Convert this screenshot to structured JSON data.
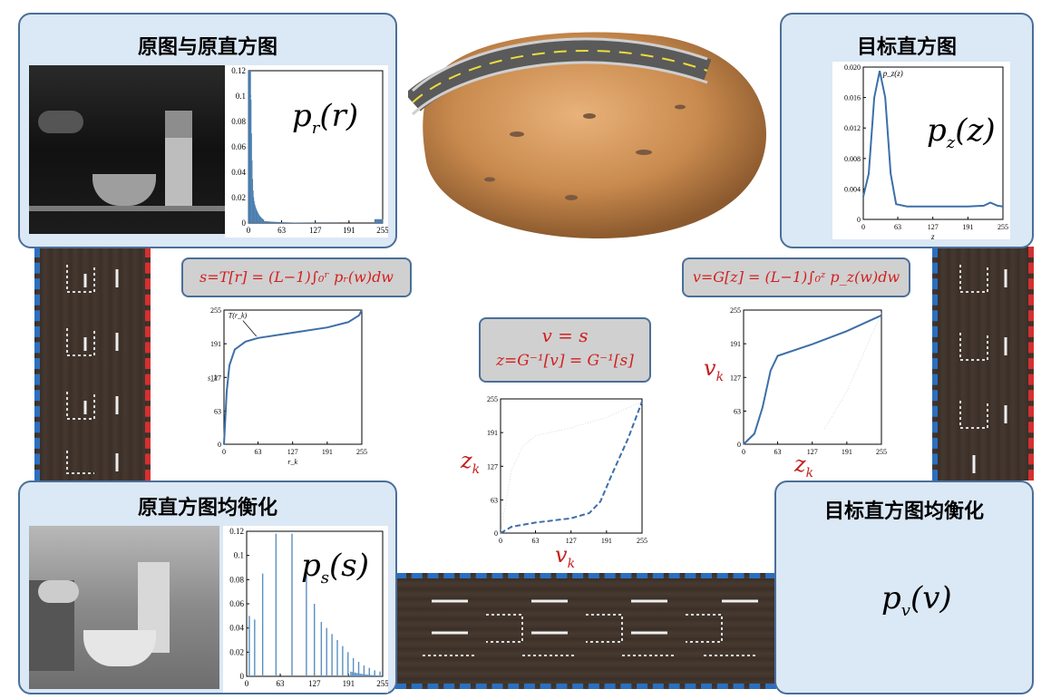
{
  "panels": {
    "original": {
      "title": "原图与原直方图",
      "label": "p_r(r)",
      "label_base": "p",
      "label_sub": "r",
      "label_arg": "(r)"
    },
    "target": {
      "title": "目标直方图",
      "label_base": "p",
      "label_sub": "z",
      "label_arg": "(z)",
      "curve_label": "p_z(z)"
    },
    "orig_eq": {
      "title": "原直方图均衡化",
      "label_base": "p",
      "label_sub": "s",
      "label_arg": "(s)"
    },
    "target_eq": {
      "title": "目标直方图均衡化",
      "label_base": "p",
      "label_sub": "v",
      "label_arg": "(v)"
    }
  },
  "formulas": {
    "left": "s=T[r] = (L−1)∫₀ʳ pᵣ(w)dw",
    "right": "v=G[z] = (L−1)∫₀ᶻ p_z(w)dw",
    "center_line1": "v = s",
    "center_line2": "z=G⁻¹[v] = G⁻¹[s]"
  },
  "axis_labels": {
    "vk_right": "v",
    "vk_right_sub": "k",
    "zk_center": "z",
    "zk_center_sub": "k",
    "vk_center": "v",
    "vk_center_sub": "k",
    "zk_right": "z",
    "zk_right_sub": "k",
    "left_curve_ann": "T(r_k)",
    "left_y": "s_k",
    "left_x": "r_k",
    "target_x": "z"
  },
  "chart_data": [
    {
      "type": "bar",
      "name_ref": "original_histogram",
      "xticks": [
        "0",
        "63",
        "127",
        "191",
        "255"
      ],
      "yticks": [
        "0",
        "0.02",
        "0.04",
        "0.06",
        "0.08",
        "0.1",
        "0.12"
      ],
      "ylim": [
        0,
        0.12
      ],
      "xlim": [
        0,
        255
      ],
      "peaks": [
        {
          "x": 2,
          "y": 0.118
        },
        {
          "x": 4,
          "y": 0.05
        },
        {
          "x": 7,
          "y": 0.03
        },
        {
          "x": 12,
          "y": 0.012
        },
        {
          "x": 20,
          "y": 0.005
        },
        {
          "x": 250,
          "y": 0.003
        }
      ]
    },
    {
      "type": "line",
      "name_ref": "target_histogram",
      "xticks": [
        "0",
        "63",
        "127",
        "191",
        "255"
      ],
      "yticks": [
        "0",
        "0.004",
        "0.008",
        "0.012",
        "0.016",
        "0.020"
      ],
      "ylim": [
        0,
        0.02
      ],
      "xlim": [
        0,
        255
      ],
      "points": [
        [
          0,
          0.003
        ],
        [
          10,
          0.006
        ],
        [
          20,
          0.016
        ],
        [
          30,
          0.0195
        ],
        [
          40,
          0.016
        ],
        [
          50,
          0.006
        ],
        [
          60,
          0.002
        ],
        [
          80,
          0.0017
        ],
        [
          127,
          0.0017
        ],
        [
          191,
          0.0017
        ],
        [
          220,
          0.0018
        ],
        [
          232,
          0.0022
        ],
        [
          245,
          0.0018
        ],
        [
          255,
          0.0017
        ]
      ]
    },
    {
      "type": "line",
      "name_ref": "transform_T",
      "xticks": [
        "0",
        "63",
        "127",
        "191",
        "255"
      ],
      "yticks": [
        "0",
        "63",
        "127",
        "191",
        "255"
      ],
      "xlim": [
        0,
        255
      ],
      "ylim": [
        0,
        255
      ],
      "points": [
        [
          0,
          0
        ],
        [
          5,
          100
        ],
        [
          10,
          150
        ],
        [
          20,
          180
        ],
        [
          40,
          195
        ],
        [
          63,
          202
        ],
        [
          127,
          212
        ],
        [
          191,
          222
        ],
        [
          230,
          232
        ],
        [
          250,
          245
        ],
        [
          255,
          255
        ]
      ]
    },
    {
      "type": "line",
      "name_ref": "inverse_G",
      "xticks": [
        "0",
        "63",
        "127",
        "191",
        "255"
      ],
      "yticks": [
        "0",
        "63",
        "127",
        "191",
        "255"
      ],
      "xlim": [
        0,
        255
      ],
      "ylim": [
        0,
        255
      ],
      "points": [
        [
          0,
          0
        ],
        [
          20,
          12
        ],
        [
          63,
          20
        ],
        [
          127,
          28
        ],
        [
          160,
          38
        ],
        [
          180,
          60
        ],
        [
          200,
          110
        ],
        [
          230,
          180
        ],
        [
          255,
          250
        ]
      ]
    },
    {
      "type": "line",
      "name_ref": "transform_G",
      "xticks": [
        "0",
        "63",
        "127",
        "191",
        "255"
      ],
      "yticks": [
        "0",
        "63",
        "127",
        "191",
        "255"
      ],
      "xlim": [
        0,
        255
      ],
      "ylim": [
        0,
        255
      ],
      "points": [
        [
          0,
          0
        ],
        [
          20,
          20
        ],
        [
          35,
          70
        ],
        [
          50,
          140
        ],
        [
          63,
          168
        ],
        [
          127,
          190
        ],
        [
          191,
          215
        ],
        [
          255,
          245
        ]
      ]
    },
    {
      "type": "bar",
      "name_ref": "equalized_histogram",
      "xticks": [
        "0",
        "63",
        "127",
        "191",
        "255"
      ],
      "yticks": [
        "0",
        "0.02",
        "0.04",
        "0.06",
        "0.08",
        "0.1",
        "0.12"
      ],
      "ylim": [
        0,
        0.12
      ],
      "xlim": [
        0,
        255
      ],
      "bars": [
        [
          5,
          0.05
        ],
        [
          15,
          0.047
        ],
        [
          30,
          0.085
        ],
        [
          55,
          0.118
        ],
        [
          85,
          0.118
        ],
        [
          112,
          0.085
        ],
        [
          127,
          0.06
        ],
        [
          140,
          0.045
        ],
        [
          150,
          0.04
        ],
        [
          160,
          0.035
        ],
        [
          170,
          0.03
        ],
        [
          180,
          0.025
        ],
        [
          190,
          0.02
        ],
        [
          200,
          0.015
        ],
        [
          210,
          0.012
        ],
        [
          220,
          0.009
        ],
        [
          230,
          0.007
        ],
        [
          240,
          0.005
        ],
        [
          250,
          0.004
        ]
      ]
    }
  ]
}
